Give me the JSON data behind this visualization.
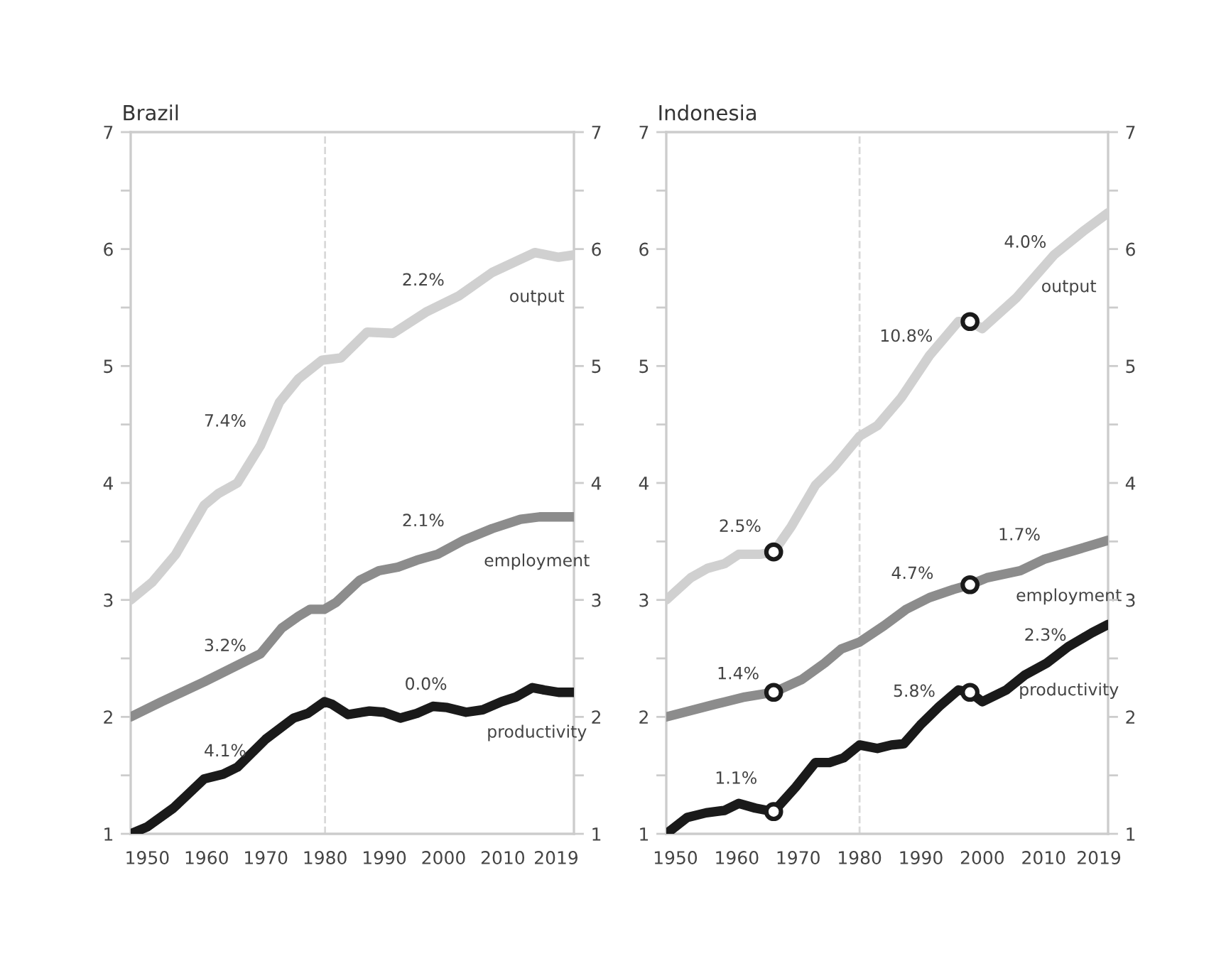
{
  "chart_data": [
    {
      "type": "line",
      "title": "Brazil",
      "xlim": [
        1947.2,
        2022
      ],
      "xticks": [
        1950,
        1960,
        1970,
        1980,
        1990,
        2000,
        2010,
        2019
      ],
      "ylim": [
        1,
        7
      ],
      "yticks": [
        1,
        {
          "value": 1.5,
          "label": null
        },
        2,
        {
          "value": 2.5,
          "label": null
        },
        3,
        {
          "value": 3.5,
          "label": null
        },
        4,
        {
          "value": 4.5,
          "label": null
        },
        5,
        {
          "value": 5.5,
          "label": null
        },
        6,
        {
          "value": 6.5,
          "label": null
        },
        7
      ],
      "y2lim": [
        1,
        7
      ],
      "y2ticks": [
        1,
        {
          "value": 1.5,
          "label": null
        },
        2,
        {
          "value": 2.5,
          "label": null
        },
        3,
        {
          "value": 3.5,
          "label": null
        },
        4,
        {
          "value": 4.5,
          "label": null
        },
        5,
        {
          "value": 5.5,
          "label": null
        },
        6,
        {
          "value": 6.5,
          "label": null
        },
        7
      ],
      "grid": false,
      "legend": false,
      "marker": "none",
      "line_style": "solid",
      "ref_lines": [
        {
          "axis": "x",
          "value": 1980,
          "color": "#d9d9d9",
          "line_style": "dashed"
        }
      ],
      "series": [
        {
          "name": "output",
          "color": "#d0d0d0",
          "x": [
            1947.2,
            1950.8,
            1954.8,
            1959.6,
            1962,
            1965.2,
            1969.1,
            1972.3,
            1975.5,
            1979.5,
            1982.7,
            1987.1,
            1991.5,
            1997,
            2002.6,
            2008.2,
            2015.4,
            2019.4,
            2022
          ],
          "values": [
            3.0,
            3.15,
            3.39,
            3.81,
            3.91,
            4.0,
            4.32,
            4.69,
            4.89,
            5.05,
            5.07,
            5.29,
            5.28,
            5.46,
            5.6,
            5.8,
            5.97,
            5.93,
            5.95
          ]
        },
        {
          "name": "employment",
          "color": "#8c8c8c",
          "x": [
            1947.2,
            1952.4,
            1959.6,
            1969.1,
            1972.7,
            1975.5,
            1977.5,
            1979.9,
            1981.9,
            1985.9,
            1989.1,
            1992.3,
            1995.5,
            1999,
            2003.4,
            2008.2,
            2013,
            2016.2,
            2022
          ],
          "values": [
            2.0,
            2.13,
            2.3,
            2.54,
            2.76,
            2.86,
            2.92,
            2.92,
            2.98,
            3.17,
            3.25,
            3.28,
            3.34,
            3.39,
            3.51,
            3.61,
            3.69,
            3.71,
            3.71
          ]
        },
        {
          "name": "productivity",
          "color": "#1a1a1a",
          "x": [
            1947.2,
            1950,
            1954.4,
            1959.6,
            1962.8,
            1965.2,
            1970,
            1974.7,
            1977.1,
            1979.9,
            1981.1,
            1983.9,
            1987.5,
            1989.9,
            1992.7,
            1995.5,
            1998.2,
            2000.6,
            2003.8,
            2006.6,
            2009.8,
            2012.2,
            2015,
            2017,
            2019.4,
            2022
          ],
          "values": [
            1.0,
            1.06,
            1.22,
            1.47,
            1.51,
            1.57,
            1.81,
            1.99,
            2.03,
            2.13,
            2.11,
            2.02,
            2.05,
            2.04,
            1.99,
            2.03,
            2.09,
            2.08,
            2.04,
            2.06,
            2.13,
            2.17,
            2.25,
            2.23,
            2.21,
            2.21
          ]
        }
      ],
      "annotations": [
        "7.4%",
        "2.2%",
        "3.2%",
        "2.1%",
        "4.1%",
        "0.0%"
      ]
    },
    {
      "type": "line",
      "title": "Indonesia",
      "xlim": [
        1948.5,
        2020.5
      ],
      "xticks": [
        1950,
        1960,
        1970,
        1980,
        1990,
        2000,
        2010,
        2019
      ],
      "ylim": [
        1,
        7
      ],
      "yticks": [
        1,
        {
          "value": 1.5,
          "label": null
        },
        2,
        {
          "value": 2.5,
          "label": null
        },
        3,
        {
          "value": 3.5,
          "label": null
        },
        4,
        {
          "value": 4.5,
          "label": null
        },
        5,
        {
          "value": 5.5,
          "label": null
        },
        6,
        {
          "value": 6.5,
          "label": null
        },
        7
      ],
      "y2lim": [
        1,
        7
      ],
      "y2ticks": [
        1,
        {
          "value": 1.5,
          "label": null
        },
        2,
        {
          "value": 2.5,
          "label": null
        },
        3,
        {
          "value": 3.5,
          "label": null
        },
        4,
        {
          "value": 4.5,
          "label": null
        },
        5,
        {
          "value": 5.5,
          "label": null
        },
        6,
        {
          "value": 6.5,
          "label": null
        },
        7
      ],
      "grid": false,
      "legend": false,
      "marker": "none",
      "line_style": "solid",
      "ref_lines": [
        {
          "axis": "x",
          "value": 1980,
          "color": "#d9d9d9",
          "line_style": "dashed"
        }
      ],
      "series": [
        {
          "name": "output",
          "color": "#d0d0d0",
          "x": [
            1948.5,
            1952.5,
            1955.2,
            1958,
            1960.3,
            1963.8,
            1966,
            1968.9,
            1972.8,
            1975.9,
            1980,
            1982.9,
            1986.8,
            1991.4,
            1996.1,
            1998,
            2000,
            2005.5,
            2011.7,
            2016.4,
            2020.5
          ],
          "values": [
            3.0,
            3.19,
            3.27,
            3.31,
            3.39,
            3.39,
            3.41,
            3.63,
            3.98,
            4.14,
            4.4,
            4.49,
            4.73,
            5.09,
            5.38,
            5.38,
            5.32,
            5.58,
            5.95,
            6.15,
            6.31
          ]
        },
        {
          "name": "employment",
          "color": "#8c8c8c",
          "x": [
            1948.5,
            1956.6,
            1961.3,
            1966,
            1970.6,
            1974.3,
            1977,
            1980,
            1984,
            1987.6,
            1991.4,
            1995.3,
            1998,
            2000.8,
            2006.2,
            2010.2,
            2014.8,
            2020.5
          ],
          "values": [
            2.0,
            2.11,
            2.17,
            2.21,
            2.32,
            2.46,
            2.58,
            2.64,
            2.78,
            2.92,
            3.02,
            3.09,
            3.13,
            3.19,
            3.25,
            3.35,
            3.42,
            3.51
          ]
        },
        {
          "name": "productivity",
          "color": "#1a1a1a",
          "x": [
            1948.5,
            1951.9,
            1955,
            1958,
            1960.3,
            1963,
            1966,
            1969.6,
            1972.8,
            1975.1,
            1977.4,
            1980,
            1982.9,
            1985.2,
            1987.2,
            1989.9,
            1993,
            1996.1,
            1998,
            2000,
            2003.9,
            2007,
            2010.5,
            2014,
            2017.9,
            2020.5
          ],
          "values": [
            1.0,
            1.14,
            1.18,
            1.2,
            1.26,
            1.22,
            1.19,
            1.4,
            1.61,
            1.61,
            1.65,
            1.76,
            1.73,
            1.76,
            1.77,
            1.93,
            2.09,
            2.23,
            2.21,
            2.13,
            2.23,
            2.36,
            2.46,
            2.6,
            2.72,
            2.79
          ]
        },
        {
          "type": "scatter",
          "color": "#1a1a1a",
          "marker": "circle",
          "x": [
            1966,
            1998,
            1966,
            1998,
            1966,
            1998
          ],
          "values": [
            3.41,
            5.38,
            2.21,
            3.13,
            1.19,
            2.21
          ]
        }
      ],
      "annotations": [
        "2.5%",
        "10.8%",
        "4.0%",
        "1.4%",
        "4.7%",
        "1.7%",
        "1.1%",
        "5.8%",
        "2.3%"
      ]
    }
  ]
}
